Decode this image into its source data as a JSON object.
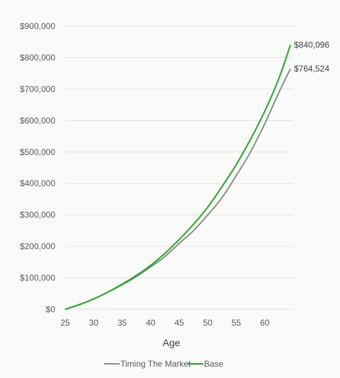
{
  "chart_data": {
    "type": "line",
    "xlabel": "Age",
    "xlim": [
      25,
      65
    ],
    "ylim": [
      0,
      900000
    ],
    "x_ticks": [
      25,
      30,
      35,
      40,
      45,
      50,
      55,
      60
    ],
    "y_ticks": [
      0,
      100000,
      200000,
      300000,
      400000,
      500000,
      600000,
      700000,
      800000,
      900000
    ],
    "y_tick_labels": [
      "$0",
      "$100,000",
      "$200,000",
      "$300,000",
      "$400,000",
      "$500,000",
      "$600,000",
      "$700,000",
      "$800,000",
      "$900,000"
    ],
    "grid": true,
    "legend_position": "bottom",
    "series": [
      {
        "name": "Timing The Market",
        "color": "#8c8c8c",
        "end_label": "$764,524",
        "x": [
          25,
          27.5,
          30,
          32.5,
          35,
          37.5,
          40,
          42.5,
          45,
          47.5,
          50,
          52.5,
          55,
          57.5,
          60,
          62.5,
          64.5
        ],
        "y": [
          0,
          15000,
          33000,
          55000,
          78000,
          104000,
          135000,
          168000,
          210000,
          250000,
          300000,
          355000,
          425000,
          500000,
          590000,
          690000,
          764524
        ]
      },
      {
        "name": "Base",
        "color": "#22aa22",
        "end_label": "$840,096",
        "x": [
          25,
          27.5,
          30,
          32.5,
          35,
          37.5,
          40,
          42.5,
          45,
          47.5,
          50,
          52.5,
          55,
          57.5,
          60,
          62.5,
          64.5
        ],
        "y": [
          0,
          15000,
          33000,
          55000,
          80000,
          108000,
          140000,
          178000,
          222000,
          270000,
          325000,
          390000,
          460000,
          540000,
          630000,
          735000,
          840096
        ]
      }
    ]
  }
}
